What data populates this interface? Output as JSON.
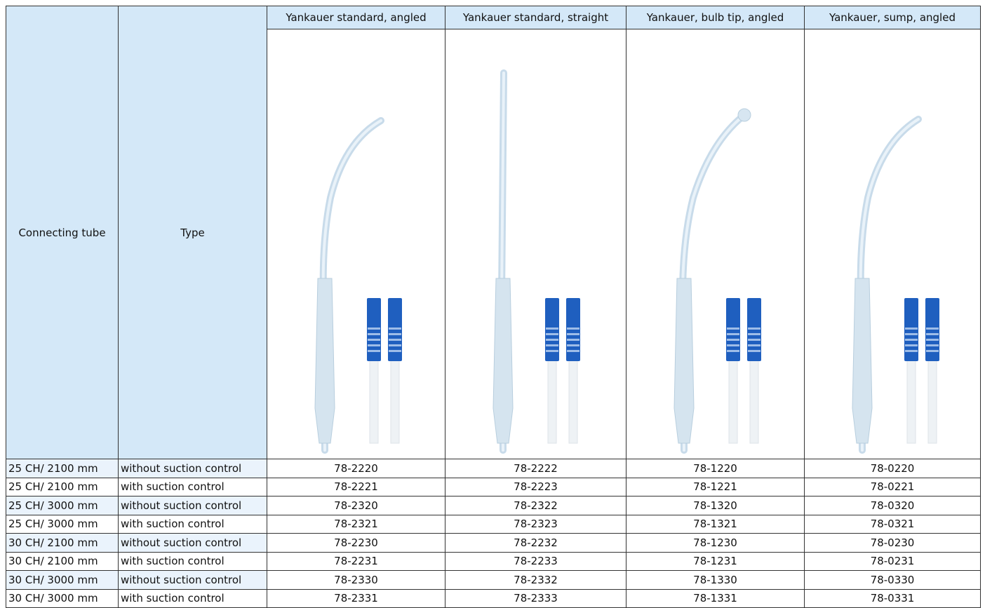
{
  "header": {
    "columns": [
      "Connecting tube",
      "Type",
      "Yankauer standard, angled",
      "Yankauer standard, straight",
      "Yankauer, bulb tip, angled",
      "Yankauer, sump, angled"
    ]
  },
  "rows": [
    [
      "25 CH/ 2100 mm",
      "without suction control",
      "78-2220",
      "78-2222",
      "78-1220",
      "78-0220"
    ],
    [
      "25 CH/ 2100 mm",
      "with suction control",
      "78-2221",
      "78-2223",
      "78-1221",
      "78-0221"
    ],
    [
      "25 CH/ 3000 mm",
      "without suction control",
      "78-2320",
      "78-2322",
      "78-1320",
      "78-0320"
    ],
    [
      "25 CH/ 3000 mm",
      "with suction control",
      "78-2321",
      "78-2323",
      "78-1321",
      "78-0321"
    ],
    [
      "30 CH/ 2100 mm",
      "without suction control",
      "78-2230",
      "78-2232",
      "78-1230",
      "78-0230"
    ],
    [
      "30 CH/ 2100 mm",
      "with suction control",
      "78-2231",
      "78-2233",
      "78-1231",
      "78-0231"
    ],
    [
      "30 CH/ 3000 mm",
      "without suction control",
      "78-2330",
      "78-2332",
      "78-1330",
      "78-0330"
    ],
    [
      "30 CH/ 3000 mm",
      "with suction control",
      "78-2331",
      "78-2333",
      "78-1331",
      "78-0331"
    ]
  ]
}
